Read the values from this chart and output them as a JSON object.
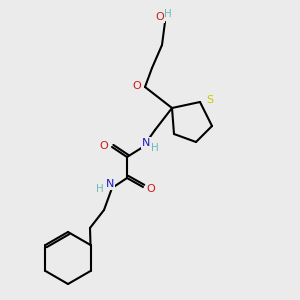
{
  "bg_color": "#ebebeb",
  "atom_colors": {
    "C": "#000000",
    "H": "#6abcbc",
    "N": "#1a1acc",
    "O": "#cc1a1a",
    "S": "#cccc00"
  },
  "figsize": [
    3.0,
    3.0
  ],
  "dpi": 100
}
